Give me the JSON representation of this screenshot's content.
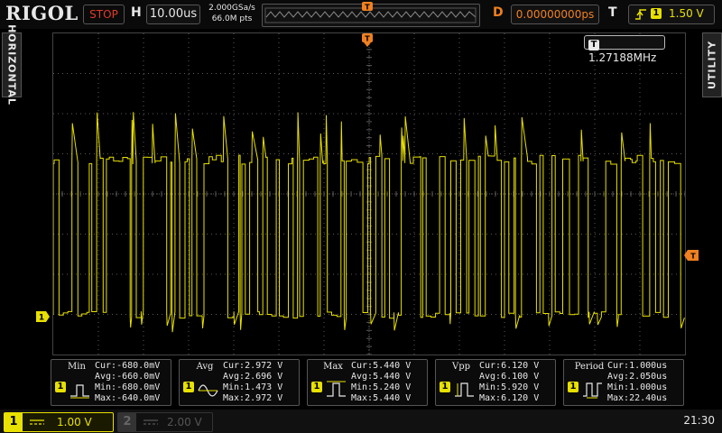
{
  "header": {
    "logo": "RIGOL",
    "run_state": "STOP",
    "h_label": "H",
    "timebase": "10.00us",
    "sample_rate": "2.000GSa/s",
    "mem_depth": "66.0M pts",
    "d_label": "D",
    "delay": "0.00000000ps",
    "t_label": "T",
    "trigger_channel": "1",
    "trigger_level": "1.50 V"
  },
  "side": {
    "left": "HORIZONTAL",
    "right": "UTILITY"
  },
  "screen": {
    "trigger_freq_badge": "T",
    "trigger_freq": "1.27188MHz",
    "ch1_marker": "1",
    "trigger_marker": "T",
    "trigger_pos_marker": "T"
  },
  "measurements": [
    {
      "name": "Min",
      "ch": "1",
      "cur": "Cur:-680.0mV",
      "avg": "Avg:-660.0mV",
      "min": "Min:-680.0mV",
      "max": "Max:-640.0mV"
    },
    {
      "name": "Avg",
      "ch": "1",
      "cur": "Cur:2.972 V",
      "avg": "Avg:2.696 V",
      "min": "Min:1.473 V",
      "max": "Max:2.972 V"
    },
    {
      "name": "Max",
      "ch": "1",
      "cur": "Cur:5.440 V",
      "avg": "Avg:5.440 V",
      "min": "Min:5.240 V",
      "max": "Max:5.440 V"
    },
    {
      "name": "Vpp",
      "ch": "1",
      "cur": "Cur:6.120 V",
      "avg": "Avg:6.100 V",
      "min": "Min:5.920 V",
      "max": "Max:6.120 V"
    },
    {
      "name": "Period",
      "ch": "1",
      "cur": "Cur:1.000us",
      "avg": "Avg:2.050us",
      "min": "Min:1.000us",
      "max": "Max:22.40us"
    }
  ],
  "footer": {
    "ch1_num": "1",
    "ch1_scale": "1.00 V",
    "ch2_num": "2",
    "ch2_scale": "2.00 V",
    "clock": "21:30"
  },
  "colors": {
    "ch1": "#e8e000",
    "trigger": "#f08020",
    "stop": "#e03a2a",
    "grid": "#5a5a5a"
  },
  "icons": [
    "trigger-rising-edge-icon",
    "min-icon",
    "avg-icon",
    "max-icon",
    "vpp-icon",
    "period-icon"
  ]
}
